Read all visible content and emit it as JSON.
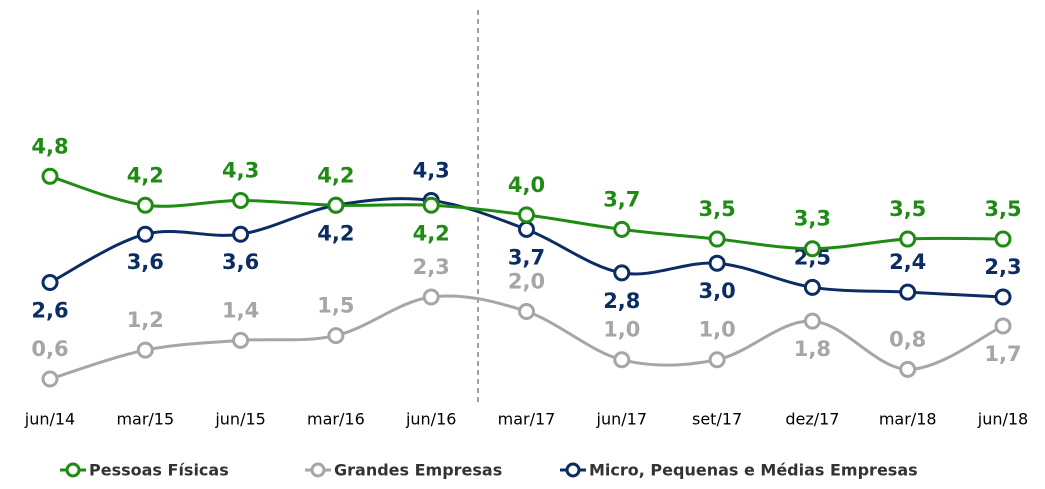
{
  "chart_data": {
    "type": "line",
    "categories": [
      "jun/14",
      "mar/15",
      "jun/15",
      "mar/16",
      "jun/16",
      "mar/17",
      "jun/17",
      "set/17",
      "dez/17",
      "mar/18",
      "jun/18"
    ],
    "series": [
      {
        "name": "Pessoas Físicas",
        "color": "#1f8a14",
        "values": [
          4.8,
          4.2,
          4.3,
          4.2,
          4.2,
          4.0,
          3.7,
          3.5,
          3.3,
          3.5,
          3.5
        ],
        "value_labels": [
          "4,8",
          "4,2",
          "4,3",
          "4,2",
          "4,2",
          "4,0",
          "3,7",
          "3,5",
          "3,3",
          "3,5",
          "3,5"
        ]
      },
      {
        "name": "Grandes Empresas",
        "color": "#a6a6a6",
        "values": [
          0.6,
          1.2,
          1.4,
          1.5,
          2.3,
          2.0,
          1.0,
          1.0,
          1.8,
          0.8,
          1.7
        ],
        "value_labels": [
          "0,6",
          "1,2",
          "1,4",
          "1,5",
          "2,3",
          "2,0",
          "1,0",
          "1,0",
          "1,8",
          "0,8",
          "1,7"
        ]
      },
      {
        "name": "Micro, Pequenas e Médias Empresas",
        "color": "#0c2d63",
        "values": [
          2.6,
          3.6,
          3.6,
          4.2,
          4.3,
          3.7,
          2.8,
          3.0,
          2.5,
          2.4,
          2.3
        ],
        "value_labels": [
          "2,6",
          "3,6",
          "3,6",
          "4,2",
          "4,3",
          "3,7",
          "2,8",
          "3,0",
          "2,5",
          "2,4",
          "2,3"
        ]
      }
    ],
    "ylim": [
      0,
      5.2
    ],
    "legend": "bottom"
  }
}
